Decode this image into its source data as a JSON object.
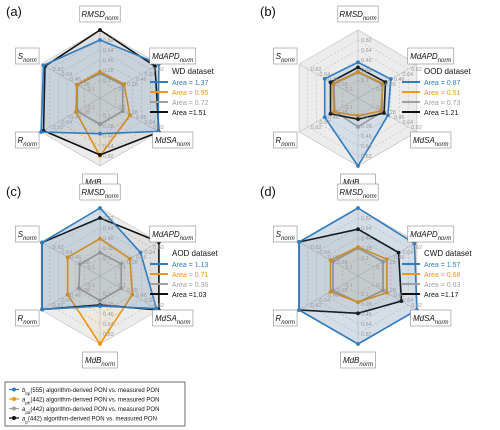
{
  "chart_data": [
    {
      "type": "radar",
      "panel_label": "(a)",
      "axes": [
        "RMSD_norm",
        "MdAPD_norm",
        "MdSA_norm",
        "MdB_norm",
        "R_norm",
        "S_norm"
      ],
      "axis_labels": [
        {
          "main": "RMSD",
          "sub": "norm"
        },
        {
          "main": "MdAPD",
          "sub": "norm"
        },
        {
          "main": "MdSA",
          "sub": "norm"
        },
        {
          "main": "MdB",
          "sub": "norm"
        },
        {
          "main": "R",
          "sub": "norm"
        },
        {
          "main": "S",
          "sub": "norm"
        }
      ],
      "tick_labels": [
        "0.1",
        "0.28",
        "0.46",
        "0.64",
        "0.82"
      ],
      "title": "WD dataset",
      "series": [
        {
          "name": "Area = 1.37",
          "color": "#2f7cc0",
          "values": [
            0.82,
            1.0,
            0.98,
            0.42,
            1.0,
            0.95
          ]
        },
        {
          "name": "Area = 0.95",
          "color": "#f0960f",
          "values": [
            0.25,
            0.28,
            0.4,
            0.82,
            0.28,
            0.26
          ]
        },
        {
          "name": "Area = 0.72",
          "color": "#a0a0a0",
          "values": [
            0.22,
            0.25,
            0.25,
            0.25,
            0.25,
            0.25
          ]
        },
        {
          "name": "Area =1.51",
          "color": "#111111",
          "values": [
            1.0,
            0.92,
            1.0,
            0.8,
            0.95,
            0.92
          ]
        }
      ]
    },
    {
      "type": "radar",
      "panel_label": "(b)",
      "axes": [
        "RMSD_norm",
        "MdAPD_norm",
        "MdSA_norm",
        "MdB_norm",
        "R_norm",
        "S_norm"
      ],
      "axis_labels": [
        {
          "main": "RMSD",
          "sub": "norm"
        },
        {
          "main": "MdAPD",
          "sub": "norm"
        },
        {
          "main": "MdSA",
          "sub": "norm"
        },
        {
          "main": "MdB",
          "sub": "norm"
        },
        {
          "main": "R",
          "sub": "norm"
        },
        {
          "main": "S",
          "sub": "norm"
        }
      ],
      "tick_labels": [
        "0.1",
        "0.28",
        "0.46",
        "0.64",
        "0.82"
      ],
      "title": "OOD dataset",
      "series": [
        {
          "name": "Area = 0.87",
          "color": "#2f7cc0",
          "values": [
            0.42,
            0.46,
            0.4,
            1.0,
            0.47,
            0.47
          ]
        },
        {
          "name": "Area = 0.51",
          "color": "#f0960f",
          "values": [
            0.25,
            0.3,
            0.25,
            0.1,
            0.28,
            0.3
          ]
        },
        {
          "name": "Area = 0.73",
          "color": "#a0a0a0",
          "values": [
            0.24,
            0.28,
            0.28,
            0.3,
            0.26,
            0.28
          ]
        },
        {
          "name": "Area =1.21",
          "color": "#111111",
          "values": [
            0.33,
            0.35,
            0.32,
            0.16,
            0.35,
            0.35
          ]
        }
      ]
    },
    {
      "type": "radar",
      "panel_label": "(c)",
      "axes": [
        "RMSD_norm",
        "MdAPD_norm",
        "MdSA_norm",
        "MdB_norm",
        "R_norm",
        "S_norm"
      ],
      "axis_labels": [
        {
          "main": "RMSD",
          "sub": "norm"
        },
        {
          "main": "MdAPD",
          "sub": "norm"
        },
        {
          "main": "MdSA",
          "sub": "norm"
        },
        {
          "main": "MdB",
          "sub": "norm"
        },
        {
          "main": "R",
          "sub": "norm"
        },
        {
          "main": "S",
          "sub": "norm"
        }
      ],
      "tick_labels": [
        "0.1",
        "0.28",
        "0.46",
        "0.64",
        "0.82"
      ],
      "title": "AOD dataset",
      "series": [
        {
          "name": "Area = 1.13",
          "color": "#2f7cc0",
          "values": [
            1.0,
            0.62,
            0.95,
            0.32,
            0.98,
            0.98
          ]
        },
        {
          "name": "Area = 0.71",
          "color": "#f0960f",
          "values": [
            0.45,
            0.4,
            0.45,
            1.0,
            0.45,
            0.45
          ]
        },
        {
          "name": "Area = 0.36",
          "color": "#a0a0a0",
          "values": [
            0.2,
            0.22,
            0.22,
            0.22,
            0.22,
            0.2
          ]
        },
        {
          "name": "Area =1.03",
          "color": "#111111",
          "values": [
            0.82,
            1.0,
            1.0,
            0.3,
            0.98,
            0.98
          ]
        }
      ]
    },
    {
      "type": "radar",
      "panel_label": "(d)",
      "axes": [
        "RMSD_norm",
        "MdAPD_norm",
        "MdSA_norm",
        "MdB_norm",
        "R_norm",
        "S_norm"
      ],
      "axis_labels": [
        {
          "main": "RMSD",
          "sub": "norm"
        },
        {
          "main": "MdAPD",
          "sub": "norm"
        },
        {
          "main": "MdSA",
          "sub": "norm"
        },
        {
          "main": "MdB",
          "sub": "norm"
        },
        {
          "main": "R",
          "sub": "norm"
        },
        {
          "main": "S",
          "sub": "norm"
        }
      ],
      "tick_labels": [
        "0.1",
        "0.28",
        "0.46",
        "0.64",
        "0.82"
      ],
      "title": "CWD dataset",
      "series": [
        {
          "name": "Area = 1.57",
          "color": "#2f7cc0",
          "values": [
            1.0,
            0.95,
            1.0,
            1.0,
            1.0,
            1.0
          ]
        },
        {
          "name": "Area = 0.68",
          "color": "#f0960f",
          "values": [
            0.3,
            0.38,
            0.38,
            0.25,
            0.35,
            0.35
          ]
        },
        {
          "name": "Area = 0.63",
          "color": "#a0a0a0",
          "values": [
            0.28,
            0.3,
            0.3,
            0.25,
            0.3,
            0.3
          ]
        },
        {
          "name": "Area =1.17",
          "color": "#111111",
          "values": [
            0.62,
            0.62,
            0.68,
            0.45,
            1.0,
            1.0
          ]
        }
      ]
    }
  ],
  "legend": [
    {
      "color": "#2f7cc0",
      "symbol": "b",
      "sub": "bp",
      "suffix": "(555) algorithm-derived PON vs. measured PON"
    },
    {
      "color": "#f0960f",
      "symbol": "a",
      "sub": "ph",
      "suffix": "(442) algorithm-derived PON vs. measured PON"
    },
    {
      "color": "#a0a0a0",
      "symbol": "a",
      "sub": "pd",
      "suffix": "(442) algorithm-derived PON vs. measured PON"
    },
    {
      "color": "#111111",
      "symbol": "a",
      "sub": "p",
      "suffix": "(442) algorithm-derived PON vs. measured PON"
    }
  ]
}
